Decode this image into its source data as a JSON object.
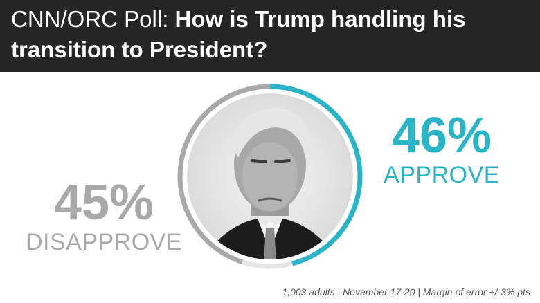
{
  "header": {
    "lead": "CNN/ORC Poll: ",
    "question": "How is Trump handling his transition to President?"
  },
  "chart_data": {
    "type": "pie",
    "categories": [
      "APPROVE",
      "DISAPPROVE"
    ],
    "values": [
      46,
      45
    ],
    "value_labels": [
      "46%",
      "45%"
    ],
    "colors": [
      "#2bb3c6",
      "#a9a9a9"
    ],
    "remainder_color": "#e6e6e6"
  },
  "center_image": {
    "subject": "portrait"
  },
  "footnote": "1,003 adults | November 17-20 | Margin of error +/-3% pts"
}
